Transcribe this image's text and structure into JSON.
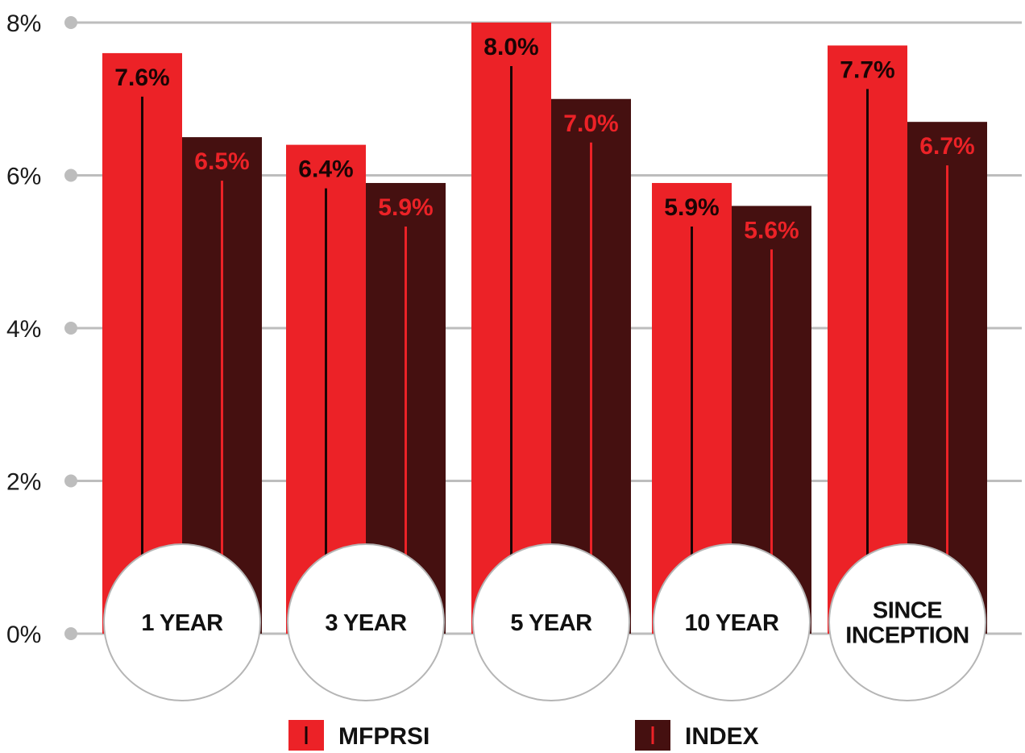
{
  "chart_data": {
    "type": "bar",
    "categories": [
      "1 YEAR",
      "3 YEAR",
      "5 YEAR",
      "10 YEAR",
      "SINCE INCEPTION"
    ],
    "series": [
      {
        "name": "MFPRSI",
        "values": [
          7.6,
          6.4,
          8.0,
          5.9,
          7.7
        ],
        "labels": [
          "7.6%",
          "6.4%",
          "8.0%",
          "5.9%",
          "7.7%"
        ]
      },
      {
        "name": "INDEX",
        "values": [
          6.5,
          5.9,
          7.0,
          5.6,
          6.7
        ],
        "labels": [
          "6.5%",
          "5.9%",
          "7.0%",
          "5.6%",
          "6.7%"
        ]
      }
    ],
    "title": "",
    "xlabel": "",
    "ylabel": "",
    "ylim": [
      0,
      8
    ],
    "yticks": [
      0,
      2,
      4,
      6,
      8
    ],
    "ytick_labels": [
      "0%",
      "2%",
      "4%",
      "6%",
      "8%"
    ],
    "grid": true,
    "legend_placement": "bottom-center",
    "colors": {
      "series_1": "#ec2227",
      "series_2": "#451010",
      "grid": "#bdbdbd",
      "series_1_label": "#1a0505",
      "series_2_label": "#ec2227"
    }
  }
}
